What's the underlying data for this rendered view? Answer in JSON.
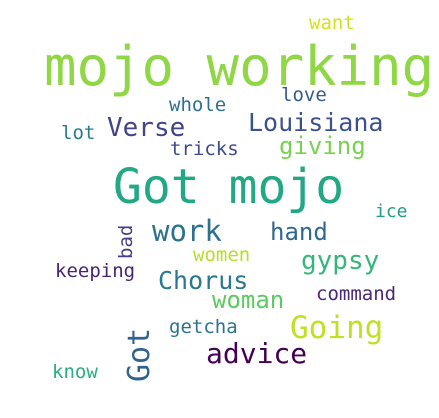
{
  "word_cloud": {
    "words": {
      "mojo_working": {
        "text": "mojo working",
        "color": "#8fd744"
      },
      "got_mojo": {
        "text": "Got mojo",
        "color": "#22a884"
      },
      "verse": {
        "text": "Verse",
        "color": "#414487"
      },
      "louisiana": {
        "text": "Louisiana",
        "color": "#3b528b"
      },
      "giving": {
        "text": "giving",
        "color": "#7ad151"
      },
      "want": {
        "text": "want",
        "color": "#d2e21b"
      },
      "love": {
        "text": "love",
        "color": "#365c8d"
      },
      "whole": {
        "text": "whole",
        "color": "#2c728e"
      },
      "lot": {
        "text": "lot",
        "color": "#287c8e"
      },
      "tricks": {
        "text": "tricks",
        "color": "#3e4a89"
      },
      "ice": {
        "text": "ice",
        "color": "#1f9e89"
      },
      "work": {
        "text": "work",
        "color": "#2c728e"
      },
      "hand": {
        "text": "hand",
        "color": "#31688e"
      },
      "bad": {
        "text": "bad",
        "color": "#433e85"
      },
      "women": {
        "text": "women",
        "color": "#b5de2b"
      },
      "gypsy": {
        "text": "gypsy",
        "color": "#35b779"
      },
      "keeping": {
        "text": "keeping",
        "color": "#482475"
      },
      "chorus": {
        "text": "Chorus",
        "color": "#2a788e"
      },
      "woman": {
        "text": "woman",
        "color": "#5ec962"
      },
      "command": {
        "text": "command",
        "color": "#482878"
      },
      "got": {
        "text": "Got",
        "color": "#33638d"
      },
      "getcha": {
        "text": "getcha",
        "color": "#2c728e"
      },
      "going": {
        "text": "Going",
        "color": "#c2df23"
      },
      "advice": {
        "text": "advice",
        "color": "#440154"
      },
      "know": {
        "text": "know",
        "color": "#29af7f"
      }
    }
  }
}
